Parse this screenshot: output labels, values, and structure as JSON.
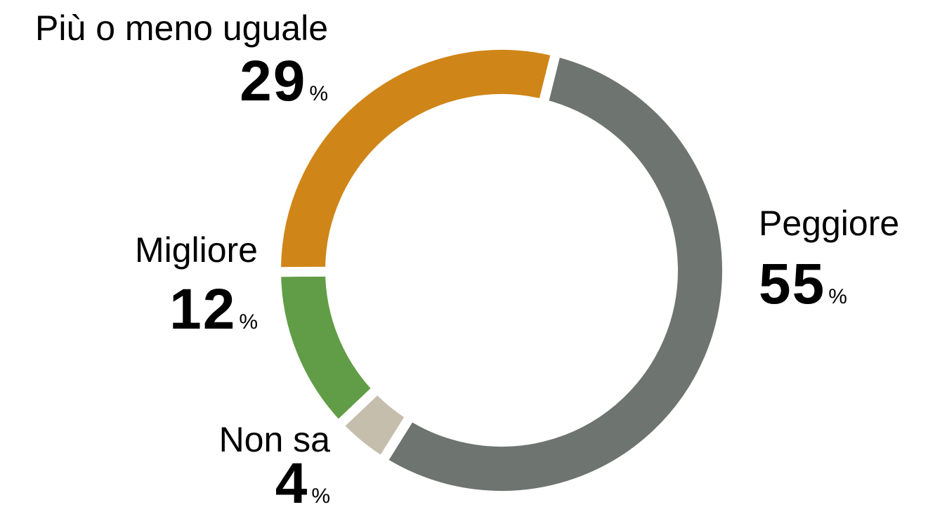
{
  "chart_data": {
    "type": "donut",
    "categories": [
      "Peggiore",
      "Non sa",
      "Migliore",
      "Più o meno uguale"
    ],
    "values": [
      55,
      4,
      12,
      29
    ],
    "colors": [
      "#6e7470",
      "#c6bead",
      "#619d46",
      "#cf8518"
    ],
    "unit": "%"
  }
}
